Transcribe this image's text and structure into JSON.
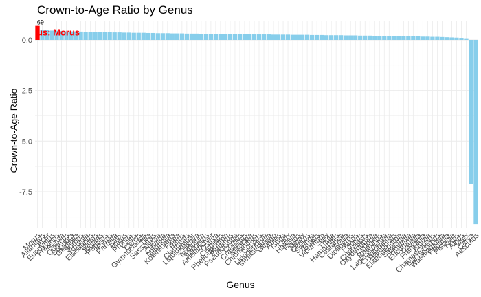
{
  "chart_data": {
    "type": "bar",
    "title": "Crown-to-Age Ratio by Genus",
    "xlabel": "Genus",
    "ylabel": "Crown-to-Age Ratio",
    "ylim": [
      -9.3,
      0.95
    ],
    "y_ticks": [
      0.0,
      -2.5,
      -5.0,
      -7.5
    ],
    "y_tick_labels": [
      "0.0",
      "-2.5",
      "-5.0",
      "-7.5"
    ],
    "grid": true,
    "categories": [
      "Morus",
      "Ailanthus",
      "Acer",
      "Euonymus",
      "Fraxinus",
      "Betula",
      "Quercus",
      "Sophora",
      "Gleditsia",
      "Sorbus",
      "Robinia",
      "Elaeagnus",
      "Ulmus",
      "Juglans",
      "Populus",
      "Pyrus",
      "Parrotia",
      "Salix",
      "Malus",
      "Prunus",
      "Celtis",
      "Cercis",
      "Gymnocladus",
      "Tilia",
      "Sassafras",
      "Nyssa",
      "Catalpa",
      "Magnolia",
      "Koelreuteria",
      "Picea",
      "Pinus",
      "Cladrastis",
      "Liquidambar",
      "Zelkova",
      "Taxodium",
      "Juniperus",
      "Amelanchier",
      "Ostrya",
      "Carpinus",
      "Phellodendron",
      "Platanus",
      "Pseudotsuga",
      "Cornus",
      "Crataegus",
      "Maackia",
      "Chionanthus",
      "Corylus",
      "Liriodendron",
      "Metasequoia",
      "Ginkgo",
      "Abies",
      "Tsuga",
      "Larix",
      "Halesia",
      "Fagus",
      "Styrax",
      "Cedrus",
      "Syringa",
      "Buxus",
      "Viburnum",
      "Ilex",
      "Thuja",
      "Hamamelis",
      "Castanea",
      "Aralia",
      "Diospyros",
      "Taxus",
      "Cotinus",
      "Cupressus",
      "Oxydendrum",
      "Cydonia",
      "Rhamnus",
      "Lagerstroemia",
      "Cryptomeria",
      "Sambucus",
      "Elaeodendron",
      "Stewartia",
      "Hovenia",
      "Eucommia",
      "Davidia",
      "Franklinia",
      "Albizia",
      "Chamaecyparis",
      "Trachycarpus",
      "Washingtonia",
      "Photinia",
      "Pistacia",
      "Ficus",
      "Alnus",
      "Vitex",
      "Carya",
      "Aesculus"
    ],
    "ytext_note": "",
    "values": [
      0.69,
      0.5,
      0.48,
      0.46,
      0.45,
      0.44,
      0.43,
      0.42,
      0.42,
      0.41,
      0.4,
      0.4,
      0.39,
      0.39,
      0.38,
      0.38,
      0.37,
      0.37,
      0.36,
      0.36,
      0.35,
      0.35,
      0.35,
      0.34,
      0.34,
      0.33,
      0.33,
      0.33,
      0.32,
      0.32,
      0.32,
      0.31,
      0.31,
      0.31,
      0.3,
      0.3,
      0.3,
      0.3,
      0.29,
      0.29,
      0.29,
      0.28,
      0.28,
      0.28,
      0.28,
      0.27,
      0.27,
      0.27,
      0.27,
      0.26,
      0.26,
      0.26,
      0.26,
      0.25,
      0.25,
      0.25,
      0.25,
      0.24,
      0.24,
      0.24,
      0.23,
      0.23,
      0.23,
      0.23,
      0.22,
      0.22,
      0.22,
      0.21,
      0.21,
      0.21,
      0.2,
      0.2,
      0.2,
      0.19,
      0.19,
      0.18,
      0.18,
      0.18,
      0.17,
      0.17,
      0.16,
      0.16,
      0.15,
      0.15,
      0.14,
      0.13,
      0.12,
      0.11,
      0.1,
      0.08,
      -7.1,
      -9.1
    ],
    "highlight": {
      "category": "Morus",
      "color": "#ff0000",
      "value_label": ".69",
      "annotation": "us: Morus"
    },
    "bar_color": "#87ceeb"
  }
}
